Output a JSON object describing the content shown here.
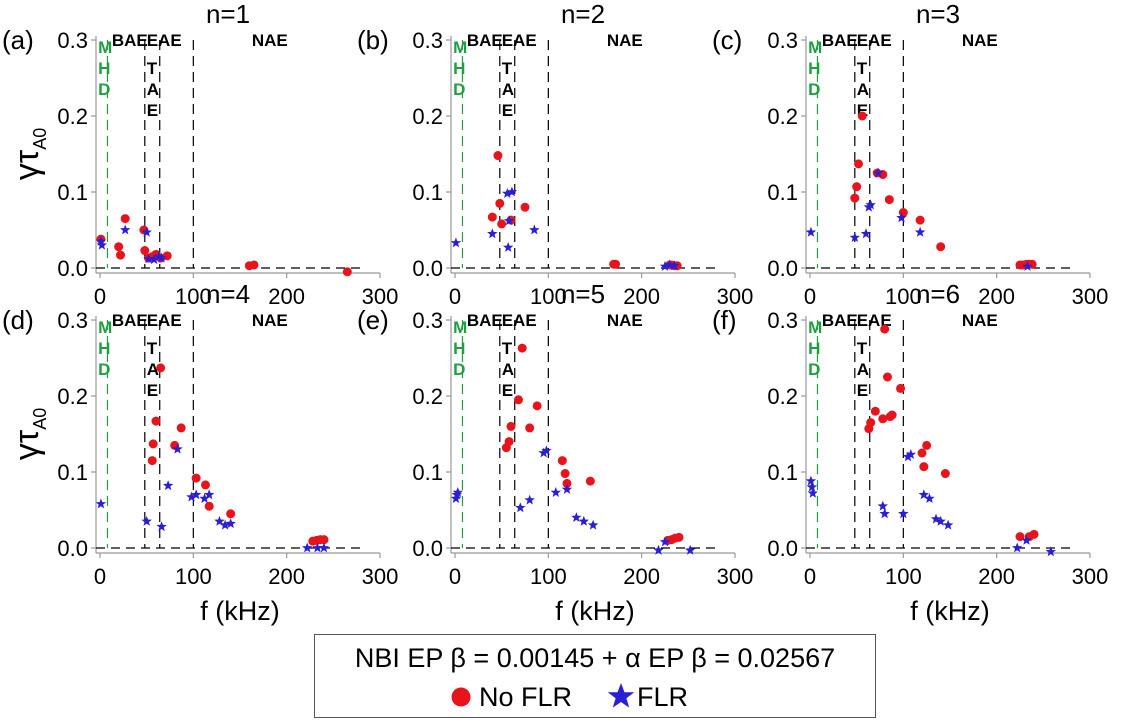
{
  "figure": {
    "ylabel": "γτ",
    "ylabel_sub": "A0",
    "xlabel": "f (kHz)"
  },
  "legend": {
    "title": "NBI EP β = 0.00145 + α EP β = 0.02567",
    "no_flr_label": "No FLR",
    "flr_label": "FLR"
  },
  "colors": {
    "no_flr": "#e8141c",
    "flr": "#2b1fd6",
    "mhd": "#1fa040",
    "gap_lines": "#000000",
    "axis": "#999999"
  },
  "chart_data": [
    {
      "type": "scatter",
      "panel": "(a)",
      "title": "n=1",
      "xlim": [
        0,
        300
      ],
      "ylim": [
        0,
        0.3
      ],
      "xticks": [
        "0",
        "100",
        "200",
        "300"
      ],
      "yticks": [
        "0.0",
        "0.1",
        "0.2",
        "0.3"
      ],
      "gap_lines_khz": [
        8,
        48,
        64,
        100
      ],
      "gap_labels": [
        "MHD",
        "BAE",
        "TAE",
        "EAE",
        "NAE"
      ],
      "series": [
        {
          "name": "No FLR",
          "marker": "circle",
          "x": [
            1,
            20,
            22,
            27,
            47,
            48,
            52,
            56,
            60,
            65,
            72,
            160,
            165,
            265
          ],
          "y": [
            0.038,
            0.028,
            0.017,
            0.065,
            0.05,
            0.023,
            0.013,
            0.015,
            0.018,
            0.013,
            0.016,
            0.003,
            0.004,
            -0.005
          ]
        },
        {
          "name": "FLR",
          "marker": "star",
          "x": [
            1,
            2,
            27,
            50,
            52,
            58,
            63,
            66
          ],
          "y": [
            0.035,
            0.03,
            0.05,
            0.047,
            0.012,
            0.011,
            0.015,
            0.013
          ]
        }
      ]
    },
    {
      "type": "scatter",
      "panel": "(b)",
      "title": "n=2",
      "xlim": [
        0,
        300
      ],
      "ylim": [
        0,
        0.3
      ],
      "xticks": [
        "0",
        "100",
        "200",
        "300"
      ],
      "yticks": [
        "0.0",
        "0.1",
        "0.2",
        "0.3"
      ],
      "gap_lines_khz": [
        8,
        48,
        64,
        100
      ],
      "gap_labels": [
        "MHD",
        "BAE",
        "TAE",
        "EAE",
        "NAE"
      ],
      "series": [
        {
          "name": "No FLR",
          "marker": "circle",
          "x": [
            40,
            46,
            48,
            50,
            60,
            75,
            170,
            172,
            230,
            232,
            235,
            238
          ],
          "y": [
            0.067,
            0.148,
            0.085,
            0.058,
            0.063,
            0.08,
            0.005,
            0.005,
            0.004,
            0.004,
            0.003,
            0.003
          ]
        },
        {
          "name": "FLR",
          "marker": "star",
          "x": [
            1,
            40,
            56,
            57,
            58,
            61,
            85,
            225,
            230,
            235
          ],
          "y": [
            0.033,
            0.045,
            0.098,
            0.027,
            0.062,
            0.1,
            0.05,
            0.002,
            0.004,
            0.003
          ]
        }
      ]
    },
    {
      "type": "scatter",
      "panel": "(c)",
      "title": "n=3",
      "xlim": [
        0,
        300
      ],
      "ylim": [
        0,
        0.3
      ],
      "xticks": [
        "0",
        "100",
        "200",
        "300"
      ],
      "yticks": [
        "0.0",
        "0.1",
        "0.2",
        "0.3"
      ],
      "gap_lines_khz": [
        8,
        48,
        64,
        100
      ],
      "gap_labels": [
        "MHD",
        "BAE",
        "TAE",
        "EAE",
        "NAE"
      ],
      "series": [
        {
          "name": "No FLR",
          "marker": "circle",
          "x": [
            48,
            50,
            52,
            56,
            72,
            78,
            85,
            100,
            118,
            140,
            225,
            228,
            232,
            235,
            238
          ],
          "y": [
            0.092,
            0.107,
            0.137,
            0.2,
            0.125,
            0.123,
            0.09,
            0.073,
            0.063,
            0.028,
            0.004,
            0.004,
            0.005,
            0.005,
            0.005
          ]
        },
        {
          "name": "FLR",
          "marker": "star",
          "x": [
            1,
            48,
            60,
            63,
            65,
            73,
            98,
            118,
            233
          ],
          "y": [
            0.047,
            0.04,
            0.045,
            0.08,
            0.083,
            0.125,
            0.066,
            0.047,
            0.002
          ]
        }
      ]
    },
    {
      "type": "scatter",
      "panel": "(d)",
      "title": "n=4",
      "xlim": [
        0,
        300
      ],
      "ylim": [
        0,
        0.3
      ],
      "xticks": [
        "0",
        "100",
        "200",
        "300"
      ],
      "yticks": [
        "0.0",
        "0.1",
        "0.2",
        "0.3"
      ],
      "gap_lines_khz": [
        8,
        48,
        64,
        100
      ],
      "gap_labels": [
        "MHD",
        "BAE",
        "TAE",
        "EAE",
        "NAE"
      ],
      "series": [
        {
          "name": "No FLR",
          "marker": "circle",
          "x": [
            56,
            57,
            60,
            65,
            80,
            87,
            103,
            113,
            117,
            140,
            228,
            232,
            236,
            240
          ],
          "y": [
            0.115,
            0.137,
            0.167,
            0.237,
            0.135,
            0.158,
            0.092,
            0.083,
            0.055,
            0.045,
            0.009,
            0.01,
            0.011,
            0.011
          ]
        },
        {
          "name": "FLR",
          "marker": "star",
          "x": [
            1,
            50,
            66,
            73,
            83,
            98,
            103,
            112,
            117,
            128,
            134,
            140,
            222,
            233,
            240
          ],
          "y": [
            0.058,
            0.035,
            0.028,
            0.082,
            0.13,
            0.067,
            0.07,
            0.065,
            0.07,
            0.035,
            0.03,
            0.032,
            0.0,
            0.0,
            0.0
          ]
        }
      ]
    },
    {
      "type": "scatter",
      "panel": "(e)",
      "title": "n=5",
      "xlim": [
        0,
        300
      ],
      "ylim": [
        0,
        0.3
      ],
      "xticks": [
        "0",
        "100",
        "200",
        "300"
      ],
      "yticks": [
        "0.0",
        "0.1",
        "0.2",
        "0.3"
      ],
      "gap_lines_khz": [
        8,
        48,
        64,
        100
      ],
      "gap_labels": [
        "MHD",
        "BAE",
        "TAE",
        "EAE",
        "NAE"
      ],
      "series": [
        {
          "name": "No FLR",
          "marker": "circle",
          "x": [
            55,
            58,
            60,
            68,
            72,
            80,
            88,
            115,
            118,
            120,
            145,
            228,
            232,
            236,
            240
          ],
          "y": [
            0.132,
            0.14,
            0.16,
            0.195,
            0.263,
            0.158,
            0.187,
            0.115,
            0.098,
            0.085,
            0.088,
            0.01,
            0.011,
            0.013,
            0.014
          ]
        },
        {
          "name": "FLR",
          "marker": "star",
          "x": [
            1,
            2,
            3,
            70,
            80,
            95,
            98,
            108,
            120,
            130,
            138,
            148,
            218,
            225,
            252
          ],
          "y": [
            0.065,
            0.07,
            0.073,
            0.053,
            0.063,
            0.125,
            0.128,
            0.073,
            0.077,
            0.04,
            0.035,
            0.03,
            -0.003,
            0.008,
            -0.003
          ]
        }
      ]
    },
    {
      "type": "scatter",
      "panel": "(f)",
      "title": "n=6",
      "xlim": [
        0,
        300
      ],
      "ylim": [
        0,
        0.3
      ],
      "xticks": [
        "0",
        "100",
        "200",
        "300"
      ],
      "yticks": [
        "0.0",
        "0.1",
        "0.2",
        "0.3"
      ],
      "gap_lines_khz": [
        8,
        48,
        64,
        100
      ],
      "gap_labels": [
        "MHD",
        "BAE",
        "TAE",
        "EAE",
        "NAE"
      ],
      "series": [
        {
          "name": "No FLR",
          "marker": "circle",
          "x": [
            63,
            65,
            70,
            78,
            80,
            83,
            86,
            88,
            97,
            120,
            122,
            125,
            145,
            225,
            235,
            240
          ],
          "y": [
            0.157,
            0.165,
            0.18,
            0.17,
            0.288,
            0.225,
            0.173,
            0.175,
            0.21,
            0.125,
            0.107,
            0.135,
            0.098,
            0.015,
            0.015,
            0.018
          ]
        },
        {
          "name": "FLR",
          "marker": "star",
          "x": [
            1,
            2,
            3,
            78,
            80,
            100,
            105,
            108,
            122,
            128,
            135,
            140,
            148,
            222,
            232,
            258
          ],
          "y": [
            0.088,
            0.08,
            0.072,
            0.055,
            0.045,
            0.045,
            0.12,
            0.123,
            0.07,
            0.065,
            0.038,
            0.035,
            0.03,
            0.0,
            0.01,
            -0.005
          ]
        }
      ]
    }
  ]
}
